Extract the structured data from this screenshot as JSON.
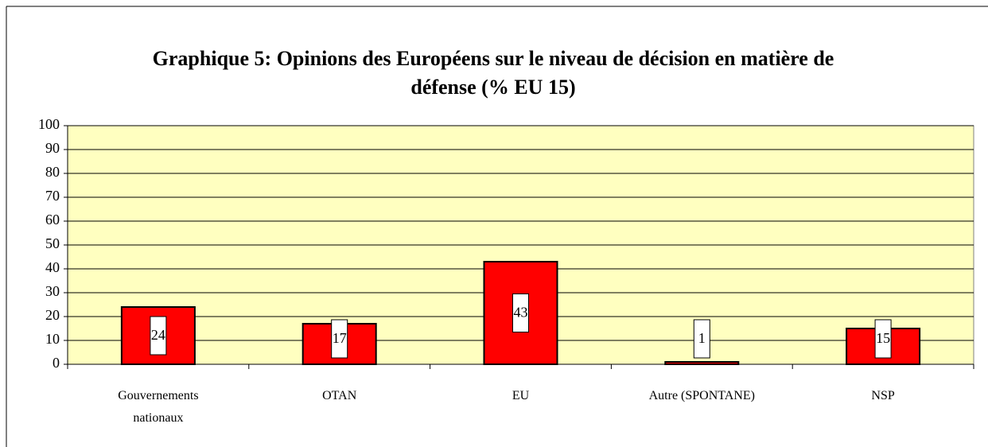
{
  "chart_data": {
    "type": "bar",
    "title": "Graphique 5: Opinions des Européens sur le niveau de décision en matière de défense (% EU 15)",
    "categories": [
      "Gouvernements nationaux",
      "OTAN",
      "EU",
      "Autre (SPONTANE)",
      "NSP"
    ],
    "values": [
      24,
      17,
      43,
      1,
      15
    ],
    "color": "#ff0000",
    "ylim": [
      0,
      100
    ],
    "yticks": [
      0,
      10,
      20,
      30,
      40,
      50,
      60,
      70,
      80,
      90,
      100
    ],
    "grid": true
  }
}
